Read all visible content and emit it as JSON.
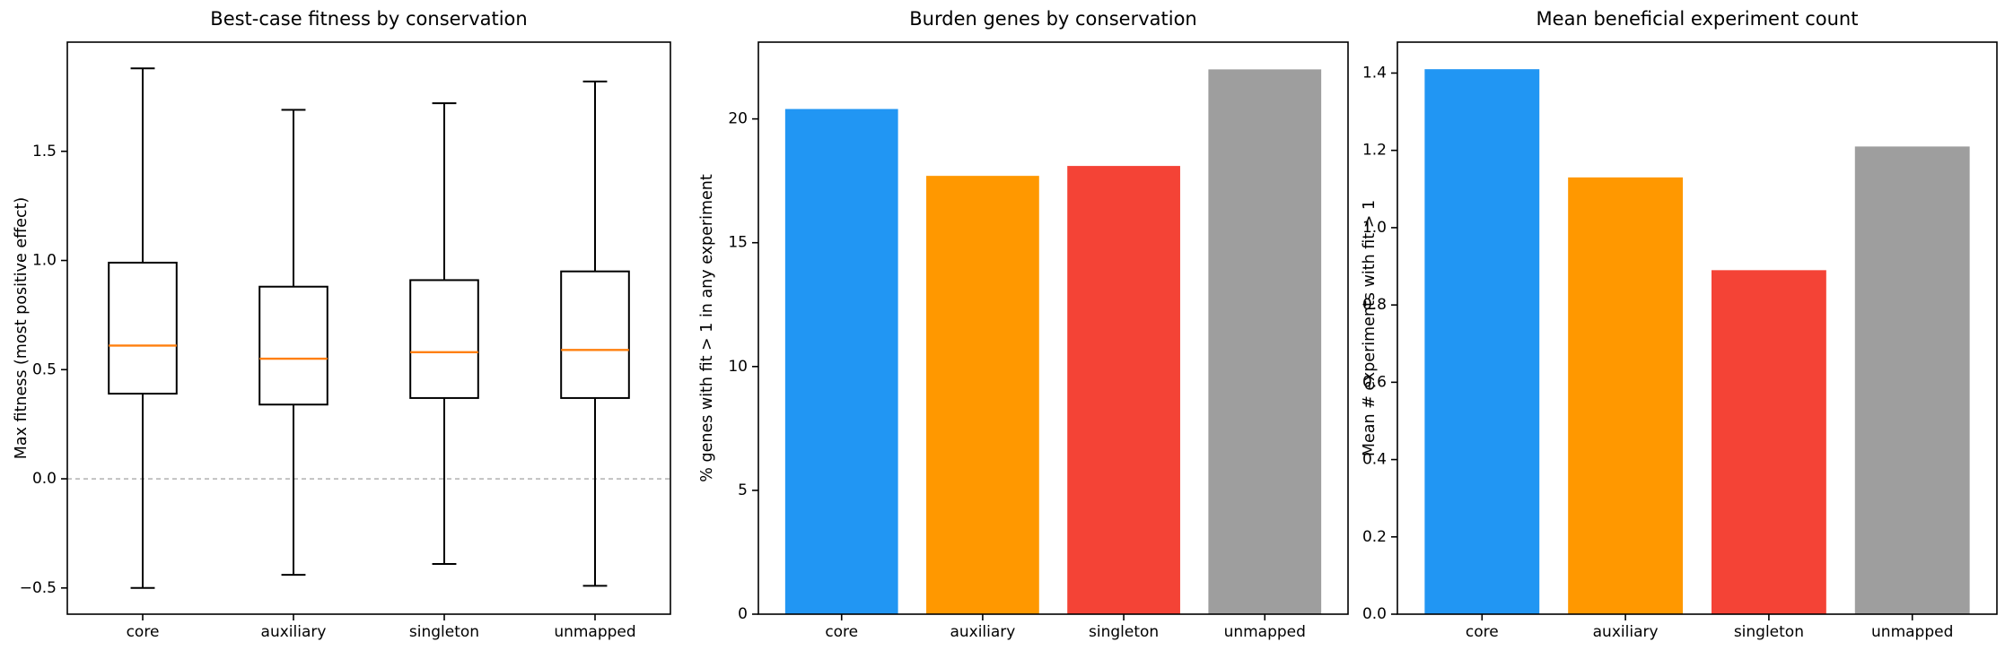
{
  "figure": {
    "background": "#ffffff",
    "text_color": "#000000",
    "categories": [
      "core",
      "auxiliary",
      "singleton",
      "unmapped"
    ],
    "palette": [
      "#2196F3",
      "#FF9800",
      "#F44336",
      "#9E9E9E"
    ]
  },
  "chart_data": [
    {
      "type": "box",
      "title": "Best-case fitness by conservation",
      "xlabel": "",
      "ylabel": "Max fitness (most positive effect)",
      "categories": [
        "core",
        "auxiliary",
        "singleton",
        "unmapped"
      ],
      "ylim": [
        -0.62,
        2.0
      ],
      "grid": false,
      "yticks": [
        {
          "value": -0.5,
          "label": "−0.5"
        },
        {
          "value": 0.0,
          "label": "0.0"
        },
        {
          "value": 0.5,
          "label": "0.5"
        },
        {
          "value": 1.0,
          "label": "1.0"
        },
        {
          "value": 1.5,
          "label": "1.5"
        }
      ],
      "zero_line": {
        "value": 0.0,
        "color": "#aaaaaa",
        "style": "dashed"
      },
      "box_line_color": "#000000",
      "box_fill": "#ffffff",
      "median_color": "#ff7f0e",
      "boxes": [
        {
          "category": "core",
          "whisker_low": -0.5,
          "q1": 0.39,
          "median": 0.61,
          "q3": 0.99,
          "whisker_high": 1.88
        },
        {
          "category": "auxiliary",
          "whisker_low": -0.44,
          "q1": 0.34,
          "median": 0.55,
          "q3": 0.88,
          "whisker_high": 1.69
        },
        {
          "category": "singleton",
          "whisker_low": -0.39,
          "q1": 0.37,
          "median": 0.58,
          "q3": 0.91,
          "whisker_high": 1.72
        },
        {
          "category": "unmapped",
          "whisker_low": -0.49,
          "q1": 0.37,
          "median": 0.59,
          "q3": 0.95,
          "whisker_high": 1.82
        }
      ]
    },
    {
      "type": "bar",
      "title": "Burden genes by conservation",
      "xlabel": "",
      "ylabel": "% genes with fit > 1 in any experiment",
      "categories": [
        "core",
        "auxiliary",
        "singleton",
        "unmapped"
      ],
      "values": [
        20.4,
        17.7,
        18.1,
        22.0
      ],
      "bar_colors": [
        "#2196F3",
        "#FF9800",
        "#F44336",
        "#9E9E9E"
      ],
      "ylim": [
        0,
        23.1
      ],
      "grid": false,
      "yticks": [
        {
          "value": 0,
          "label": "0"
        },
        {
          "value": 5,
          "label": "5"
        },
        {
          "value": 10,
          "label": "10"
        },
        {
          "value": 15,
          "label": "15"
        },
        {
          "value": 20,
          "label": "20"
        }
      ]
    },
    {
      "type": "bar",
      "title": "Mean beneficial experiment count",
      "xlabel": "",
      "ylabel": "Mean # experiments with fit > 1",
      "categories": [
        "core",
        "auxiliary",
        "singleton",
        "unmapped"
      ],
      "values": [
        1.41,
        1.13,
        0.89,
        1.21
      ],
      "bar_colors": [
        "#2196F3",
        "#FF9800",
        "#F44336",
        "#9E9E9E"
      ],
      "ylim": [
        0,
        1.48
      ],
      "grid": false,
      "yticks": [
        {
          "value": 0.0,
          "label": "0.0"
        },
        {
          "value": 0.2,
          "label": "0.2"
        },
        {
          "value": 0.4,
          "label": "0.4"
        },
        {
          "value": 0.6,
          "label": "0.6"
        },
        {
          "value": 0.8,
          "label": "0.8"
        },
        {
          "value": 1.0,
          "label": "1.0"
        },
        {
          "value": 1.2,
          "label": "1.2"
        },
        {
          "value": 1.4,
          "label": "1.4"
        }
      ]
    }
  ]
}
